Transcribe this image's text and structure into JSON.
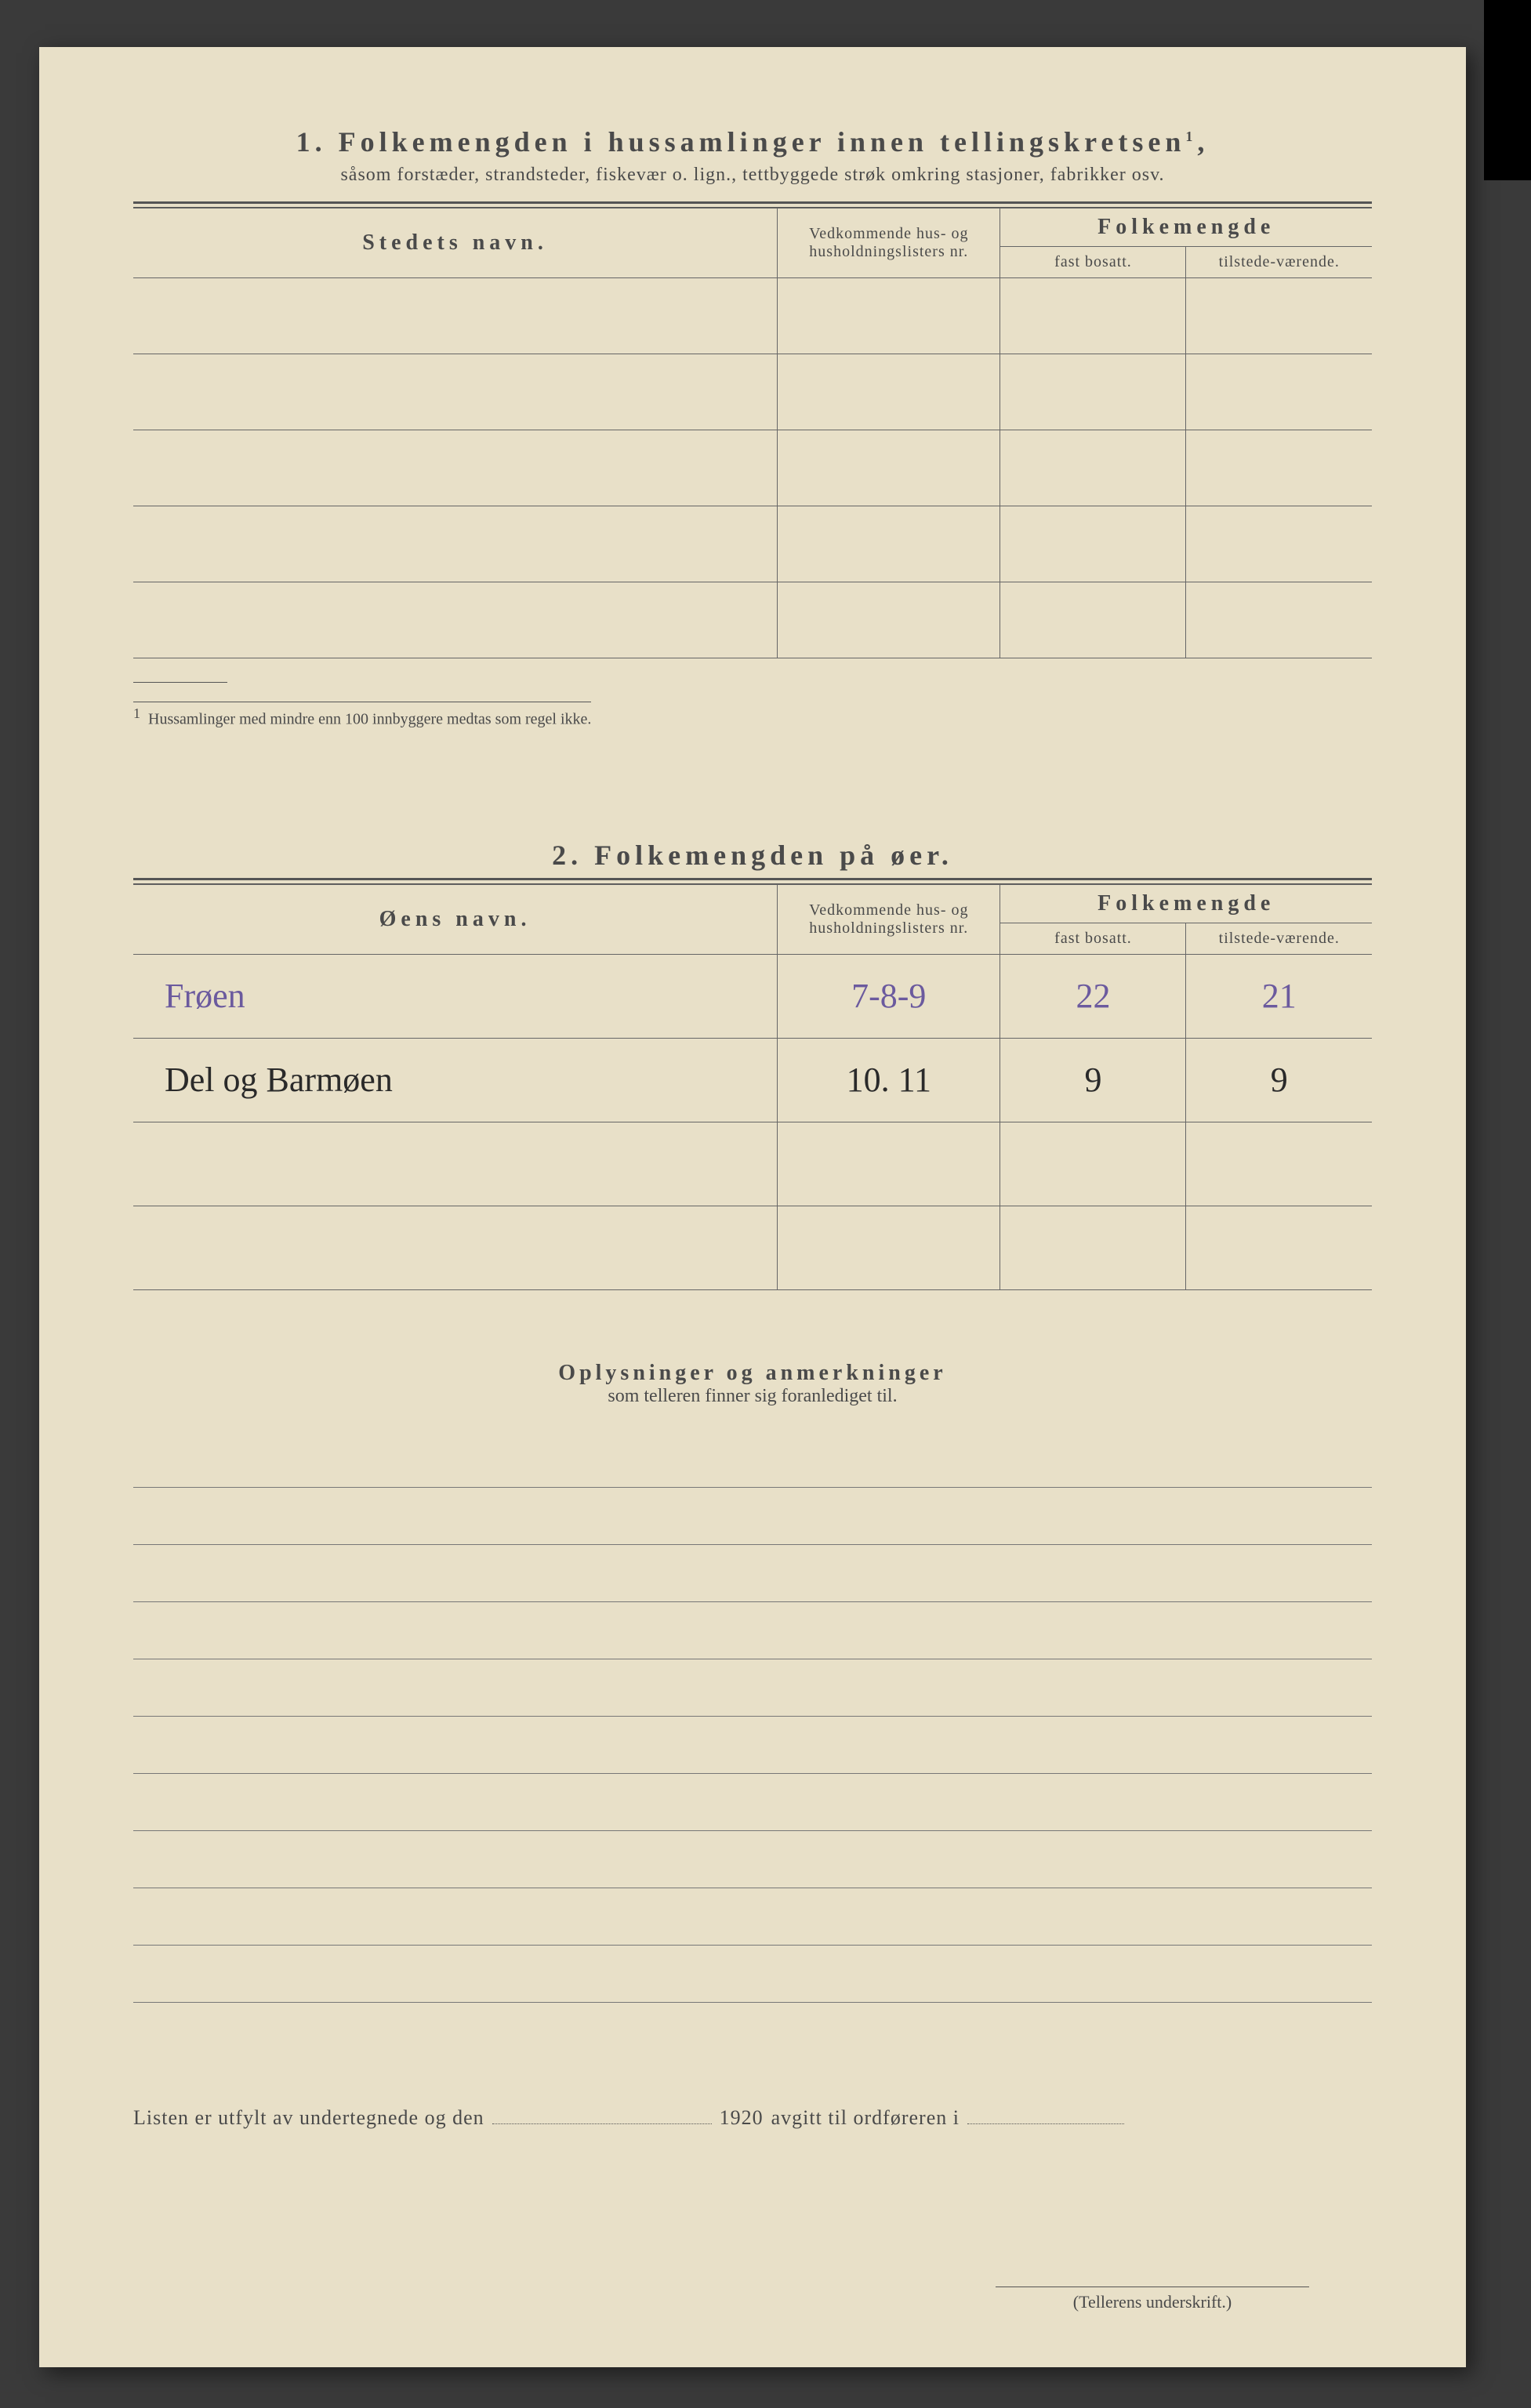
{
  "section1": {
    "number": "1.",
    "title": "Folkemengden i hussamlinger innen tellingskretsen",
    "title_sup": "1",
    "subtitle": "såsom forstæder, strandsteder, fiskevær o. lign., tettbyggede strøk omkring stasjoner, fabrikker osv.",
    "headers": {
      "name": "Stedets navn.",
      "ref": "Vedkommende hus- og husholdningslisters nr.",
      "group": "Folkemengde",
      "fast": "fast bosatt.",
      "tilstede": "tilstede-værende."
    },
    "rows": [
      {
        "name": "",
        "ref": "",
        "fast": "",
        "til": ""
      },
      {
        "name": "",
        "ref": "",
        "fast": "",
        "til": ""
      },
      {
        "name": "",
        "ref": "",
        "fast": "",
        "til": ""
      },
      {
        "name": "",
        "ref": "",
        "fast": "",
        "til": ""
      },
      {
        "name": "",
        "ref": "",
        "fast": "",
        "til": ""
      }
    ],
    "footnote_marker": "1",
    "footnote": "Hussamlinger med mindre enn 100 innbyggere medtas som regel ikke."
  },
  "section2": {
    "number": "2.",
    "title": "Folkemengden på øer.",
    "headers": {
      "name": "Øens navn.",
      "ref": "Vedkommende hus- og husholdningslisters nr.",
      "group": "Folkemengde",
      "fast": "fast bosatt.",
      "tilstede": "tilstede-værende."
    },
    "rows": [
      {
        "name": "Frøen",
        "ref": "7-8-9",
        "fast": "22",
        "til": "21",
        "style": "purple"
      },
      {
        "name": "Del og Barmøen",
        "ref": "10. 11",
        "fast": "9",
        "til": "9",
        "style": "black"
      },
      {
        "name": "",
        "ref": "",
        "fast": "",
        "til": "",
        "style": ""
      },
      {
        "name": "",
        "ref": "",
        "fast": "",
        "til": "",
        "style": ""
      }
    ]
  },
  "remarks": {
    "title": "Oplysninger og anmerkninger",
    "subtitle": "som telleren finner sig foranlediget til.",
    "line_count": 10
  },
  "bottom": {
    "prefix": "Listen er utfylt av undertegnede og den",
    "year": "1920",
    "suffix": "avgitt til ordføreren i"
  },
  "signature_label": "(Tellerens underskrift.)",
  "colors": {
    "paper": "#e8e0c8",
    "ink": "#4a4a4a",
    "rule": "#555",
    "hand_purple": "#6b5a9e",
    "hand_black": "#2a2a2a"
  }
}
